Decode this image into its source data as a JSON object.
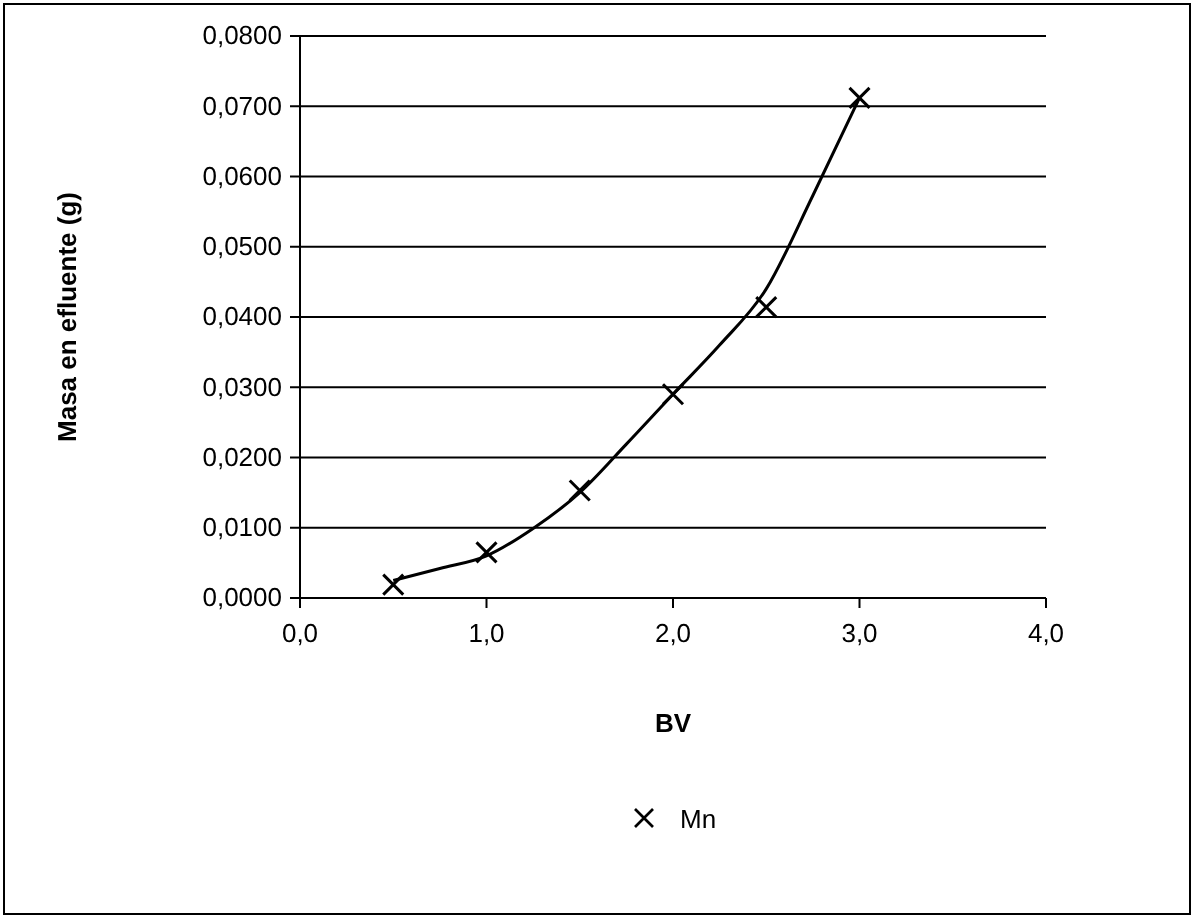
{
  "chart_data": {
    "type": "scatter",
    "xlabel": "BV",
    "ylabel": "Masa en efluente (g)",
    "xlim": [
      0,
      4
    ],
    "xticks": [
      {
        "value": 0,
        "label": "0,0"
      },
      {
        "value": 1,
        "label": "1,0"
      },
      {
        "value": 2,
        "label": "2,0"
      },
      {
        "value": 3,
        "label": "3,0"
      },
      {
        "value": 4,
        "label": "4,0"
      }
    ],
    "ylim": [
      0,
      0.08
    ],
    "yticks": [
      {
        "value": 0,
        "label": "0,0000"
      },
      {
        "value": 0.01,
        "label": "0,0100"
      },
      {
        "value": 0.02,
        "label": "0,0200"
      },
      {
        "value": 0.03,
        "label": "0,0300"
      },
      {
        "value": 0.04,
        "label": "0,0400"
      },
      {
        "value": 0.05,
        "label": "0,0500"
      },
      {
        "value": 0.06,
        "label": "0,0600"
      },
      {
        "value": 0.07,
        "label": "0,0700"
      },
      {
        "value": 0.08,
        "label": "0,0800"
      }
    ],
    "grid": "y",
    "legend": "bottom",
    "series": [
      {
        "name": "Mn",
        "marker": "cross",
        "color": "#000000",
        "x": [
          0.5,
          1.0,
          1.5,
          2.0,
          2.5,
          3.0
        ],
        "values": [
          0.0019,
          0.0065,
          0.0153,
          0.029,
          0.0414,
          0.0712
        ]
      },
      {
        "type": "line",
        "marker": "none",
        "color": "#000000",
        "x": [
          0.5,
          0.75,
          1.0,
          1.25,
          1.5,
          1.75,
          2.0,
          2.25,
          2.5,
          2.75,
          3.0
        ],
        "values": [
          0.0025,
          0.0042,
          0.006,
          0.0099,
          0.015,
          0.0219,
          0.029,
          0.036,
          0.044,
          0.0573,
          0.0712
        ]
      }
    ]
  }
}
